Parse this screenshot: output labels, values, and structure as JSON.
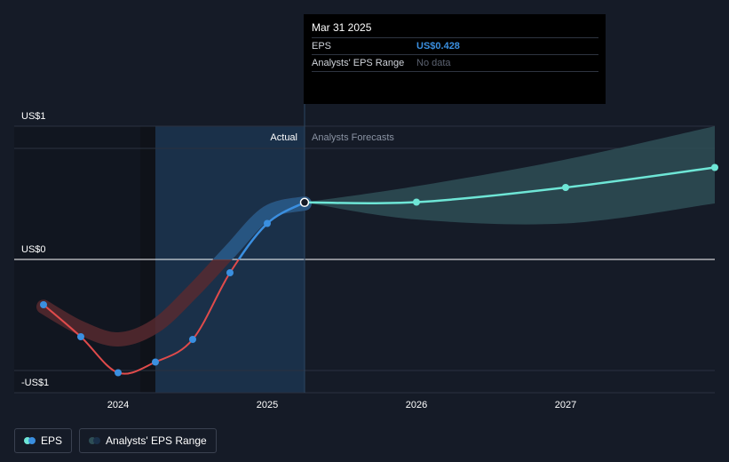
{
  "tooltip": {
    "date": "Mar 31 2025",
    "eps_label": "EPS",
    "eps_value": "US$0.428",
    "range_label": "Analysts' EPS Range",
    "range_value": "No data"
  },
  "legend": {
    "eps_label": "EPS",
    "range_label": "Analysts' EPS Range"
  },
  "colors": {
    "background": "#151b27",
    "actual_band": "#1a3049",
    "eps_negative": "#e04b4b",
    "eps_positive": "#3a8fe0",
    "forecast_line": "#6ee6d6",
    "forecast_band": "#2e4e56"
  },
  "chart_data": {
    "type": "line",
    "title": "",
    "xlabel": "",
    "ylabel": "",
    "ylim": [
      -1,
      1
    ],
    "y_tick_labels": [
      "US$1",
      "US$0",
      "-US$1"
    ],
    "x_tick_labels": [
      "2024",
      "2025",
      "2026",
      "2027"
    ],
    "x_ticks": [
      2024,
      2025,
      2026,
      2027
    ],
    "xlim": [
      2023.6,
      2028.0
    ],
    "region_labels": {
      "actual": "Actual",
      "forecast": "Analysts Forecasts"
    },
    "present_x": 2025.25,
    "series": [
      {
        "name": "EPS",
        "x": [
          2023.5,
          2023.75,
          2024.0,
          2024.25,
          2024.5,
          2024.75,
          2025.0,
          2025.25
        ],
        "values": [
          -0.34,
          -0.58,
          -0.85,
          -0.77,
          -0.6,
          -0.1,
          0.27,
          0.428
        ]
      },
      {
        "name": "Analysts Forecasts",
        "x": [
          2025.25,
          2026.0,
          2027.0,
          2028.0
        ],
        "values": [
          0.428,
          0.43,
          0.54,
          0.69
        ]
      }
    ],
    "actual_range": {
      "x": [
        2023.5,
        2023.75,
        2024.0,
        2024.25,
        2024.5,
        2024.75,
        2025.0,
        2025.25
      ],
      "low": [
        -0.38,
        -0.55,
        -0.64,
        -0.54,
        -0.28,
        0.02,
        0.3,
        0.36
      ],
      "high": [
        -0.33,
        -0.48,
        -0.56,
        -0.46,
        -0.2,
        0.1,
        0.4,
        0.48
      ]
    },
    "forecast_range": {
      "x": [
        2025.25,
        2026.0,
        2027.0,
        2028.0
      ],
      "low": [
        0.428,
        0.3,
        0.27,
        0.42
      ],
      "high": [
        0.428,
        0.55,
        0.75,
        1.0
      ]
    },
    "grid": true,
    "legend_position": "bottom-left"
  }
}
